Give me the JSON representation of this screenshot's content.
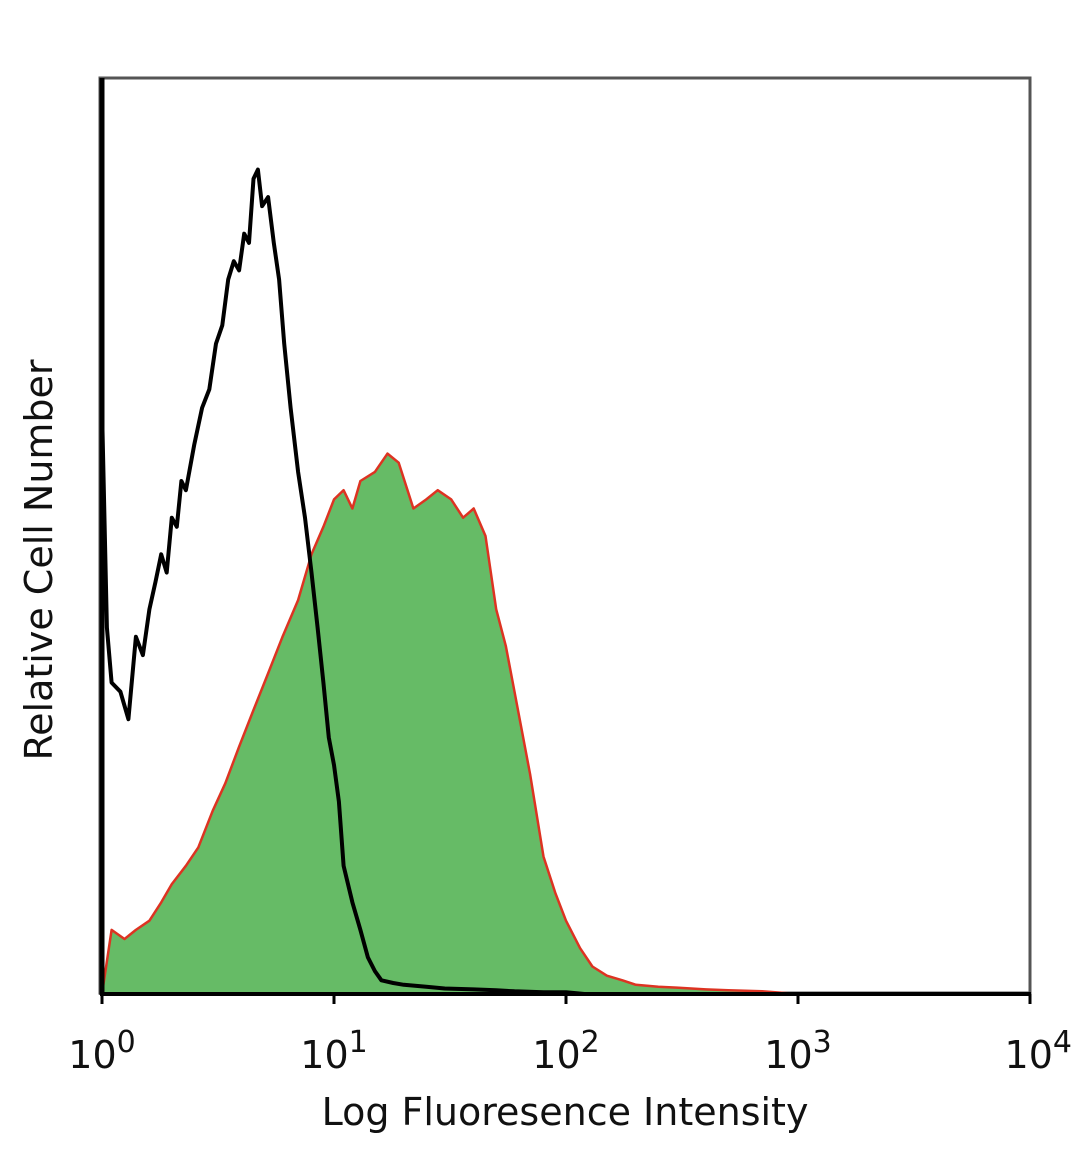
{
  "chart_data": {
    "type": "area",
    "title": "",
    "xlabel": "Log Fluoresence Intensity",
    "ylabel": "Relative Cell Number",
    "x_scale": "log",
    "xlim": [
      1,
      10000
    ],
    "ylim": [
      0,
      100
    ],
    "grid": false,
    "legend": "none",
    "x_ticks": [
      {
        "value": 1,
        "base": "10",
        "exp": "0"
      },
      {
        "value": 10,
        "base": "10",
        "exp": "1"
      },
      {
        "value": 100,
        "base": "10",
        "exp": "2"
      },
      {
        "value": 1000,
        "base": "10",
        "exp": "3"
      },
      {
        "value": 10000,
        "base": "10",
        "exp": "4"
      }
    ],
    "series": [
      {
        "style": "filled",
        "fill_color": "#66bb66",
        "line_color": "#dd3322",
        "x": [
          1.0,
          1.1,
          1.25,
          1.4,
          1.6,
          1.8,
          2.0,
          2.3,
          2.6,
          3.0,
          3.4,
          3.9,
          4.5,
          5.2,
          6.0,
          7.0,
          8.0,
          9.0,
          10,
          11,
          12,
          13,
          15,
          17,
          19,
          22,
          25,
          28,
          32,
          36,
          40,
          45,
          50,
          55,
          60,
          70,
          80,
          90,
          100,
          115,
          130,
          150,
          175,
          200,
          250,
          300,
          400,
          500,
          700,
          1000
        ],
        "y": [
          0,
          7,
          6,
          7,
          8,
          10,
          12,
          14,
          16,
          20,
          23,
          27,
          31,
          35,
          39,
          43,
          48,
          51,
          54,
          55,
          53,
          56,
          57,
          59,
          58,
          53,
          54,
          55,
          54,
          52,
          53,
          50,
          42,
          38,
          33,
          24,
          15,
          11,
          8,
          5,
          3,
          2,
          1.5,
          1,
          0.8,
          0.7,
          0.5,
          0.4,
          0.3,
          0
        ]
      },
      {
        "style": "line",
        "line_color": "#000000",
        "x": [
          1.0,
          1.05,
          1.1,
          1.2,
          1.3,
          1.4,
          1.5,
          1.6,
          1.7,
          1.8,
          1.9,
          2.0,
          2.1,
          2.2,
          2.3,
          2.5,
          2.7,
          2.9,
          3.1,
          3.3,
          3.5,
          3.7,
          3.9,
          4.1,
          4.3,
          4.5,
          4.7,
          4.9,
          5.2,
          5.5,
          5.8,
          6.1,
          6.5,
          7.0,
          7.5,
          8.0,
          8.5,
          9.0,
          9.5,
          10.0,
          10.5,
          11.0,
          12.0,
          13.0,
          14.0,
          15.0,
          16.0,
          18.0,
          20.0,
          25.0,
          30.0,
          40.0,
          50.0,
          60.0,
          80.0,
          100.0,
          120.0
        ],
        "y": [
          64,
          40,
          34,
          33,
          30,
          39,
          37,
          42,
          45,
          48,
          46,
          52,
          51,
          56,
          55,
          60,
          64,
          66,
          71,
          73,
          78,
          80,
          79,
          83,
          82,
          89,
          90,
          86,
          87,
          82,
          78,
          71,
          64,
          57,
          52,
          46,
          40,
          34,
          28,
          25,
          21,
          14,
          10,
          7,
          4,
          2.5,
          1.5,
          1.2,
          1,
          0.8,
          0.6,
          0.5,
          0.4,
          0.3,
          0.2,
          0.2,
          0
        ]
      }
    ]
  }
}
